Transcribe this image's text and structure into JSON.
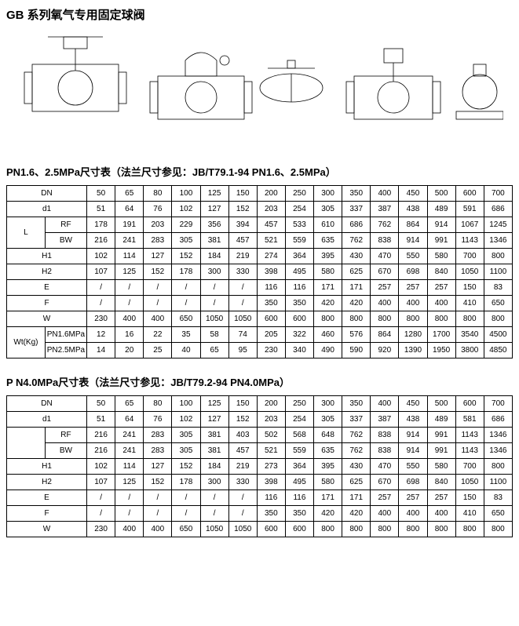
{
  "title": "GB 系列氧气专用固定球阀",
  "diagrams_note": "Technical drawings (4 valve views)",
  "table1": {
    "title": "PN1.6、2.5MPa尺寸表（法兰尺寸参见：JB/T79.1-94 PN1.6、2.5MPa）",
    "dn_label": "DN",
    "dn": [
      "50",
      "65",
      "80",
      "100",
      "125",
      "150",
      "200",
      "250",
      "300",
      "350",
      "400",
      "450",
      "500",
      "600",
      "700"
    ],
    "d1_label": "d1",
    "d1": [
      "51",
      "64",
      "76",
      "102",
      "127",
      "152",
      "203",
      "254",
      "305",
      "337",
      "387",
      "438",
      "489",
      "591",
      "686"
    ],
    "l_label": "L",
    "l_rf_label": "RF",
    "l_rf": [
      "178",
      "191",
      "203",
      "229",
      "356",
      "394",
      "457",
      "533",
      "610",
      "686",
      "762",
      "864",
      "914",
      "1067",
      "1245"
    ],
    "l_bw_label": "BW",
    "l_bw": [
      "216",
      "241",
      "283",
      "305",
      "381",
      "457",
      "521",
      "559",
      "635",
      "762",
      "838",
      "914",
      "991",
      "1143",
      "1346"
    ],
    "h1_label": "H1",
    "h1": [
      "102",
      "114",
      "127",
      "152",
      "184",
      "219",
      "274",
      "364",
      "395",
      "430",
      "470",
      "550",
      "580",
      "700",
      "800"
    ],
    "h2_label": "H2",
    "h2": [
      "107",
      "125",
      "152",
      "178",
      "300",
      "330",
      "398",
      "495",
      "580",
      "625",
      "670",
      "698",
      "840",
      "1050",
      "1100"
    ],
    "e_label": "E",
    "e": [
      "/",
      "/",
      "/",
      "/",
      "/",
      "/",
      "116",
      "116",
      "171",
      "171",
      "257",
      "257",
      "257",
      "150",
      "83"
    ],
    "f_label": "F",
    "f": [
      "/",
      "/",
      "/",
      "/",
      "/",
      "/",
      "350",
      "350",
      "420",
      "420",
      "400",
      "400",
      "400",
      "410",
      "650"
    ],
    "w_label": "W",
    "w": [
      "230",
      "400",
      "400",
      "650",
      "1050",
      "1050",
      "600",
      "600",
      "800",
      "800",
      "800",
      "800",
      "800",
      "800",
      "800"
    ],
    "wt_label": "Wt(Kg)",
    "wt16_label": "PN1.6MPa",
    "wt16": [
      "12",
      "16",
      "22",
      "35",
      "58",
      "74",
      "205",
      "322",
      "460",
      "576",
      "864",
      "1280",
      "1700",
      "3540",
      "4500"
    ],
    "wt25_label": "PN2.5MPa",
    "wt25": [
      "14",
      "20",
      "25",
      "40",
      "65",
      "95",
      "230",
      "340",
      "490",
      "590",
      "920",
      "1390",
      "1950",
      "3800",
      "4850"
    ]
  },
  "table2": {
    "title": "P N4.0MPa尺寸表（法兰尺寸参见：JB/T79.2-94 PN4.0MPa）",
    "dn_label": "DN",
    "dn": [
      "50",
      "65",
      "80",
      "100",
      "125",
      "150",
      "200",
      "250",
      "300",
      "350",
      "400",
      "450",
      "500",
      "600",
      "700"
    ],
    "d1_label": "d1",
    "d1": [
      "51",
      "64",
      "76",
      "102",
      "127",
      "152",
      "203",
      "254",
      "305",
      "337",
      "387",
      "438",
      "489",
      "581",
      "686"
    ],
    "blank_label": "",
    "rf_label": "RF",
    "rf": [
      "216",
      "241",
      "283",
      "305",
      "381",
      "403",
      "502",
      "568",
      "648",
      "762",
      "838",
      "914",
      "991",
      "1143",
      "1346"
    ],
    "bw_label": "BW",
    "bw": [
      "216",
      "241",
      "283",
      "305",
      "381",
      "457",
      "521",
      "559",
      "635",
      "762",
      "838",
      "914",
      "991",
      "1143",
      "1346"
    ],
    "h1_label": "H1",
    "h1": [
      "102",
      "114",
      "127",
      "152",
      "184",
      "219",
      "273",
      "364",
      "395",
      "430",
      "470",
      "550",
      "580",
      "700",
      "800"
    ],
    "h2_label": "H2",
    "h2": [
      "107",
      "125",
      "152",
      "178",
      "300",
      "330",
      "398",
      "495",
      "580",
      "625",
      "670",
      "698",
      "840",
      "1050",
      "1100"
    ],
    "e_label": "E",
    "e": [
      "/",
      "/",
      "/",
      "/",
      "/",
      "/",
      "116",
      "116",
      "171",
      "171",
      "257",
      "257",
      "257",
      "150",
      "83"
    ],
    "f_label": "F",
    "f": [
      "/",
      "/",
      "/",
      "/",
      "/",
      "/",
      "350",
      "350",
      "420",
      "420",
      "400",
      "400",
      "400",
      "410",
      "650"
    ],
    "w_label": "W",
    "w": [
      "230",
      "400",
      "400",
      "650",
      "1050",
      "1050",
      "600",
      "600",
      "800",
      "800",
      "800",
      "800",
      "800",
      "800",
      "800"
    ]
  }
}
